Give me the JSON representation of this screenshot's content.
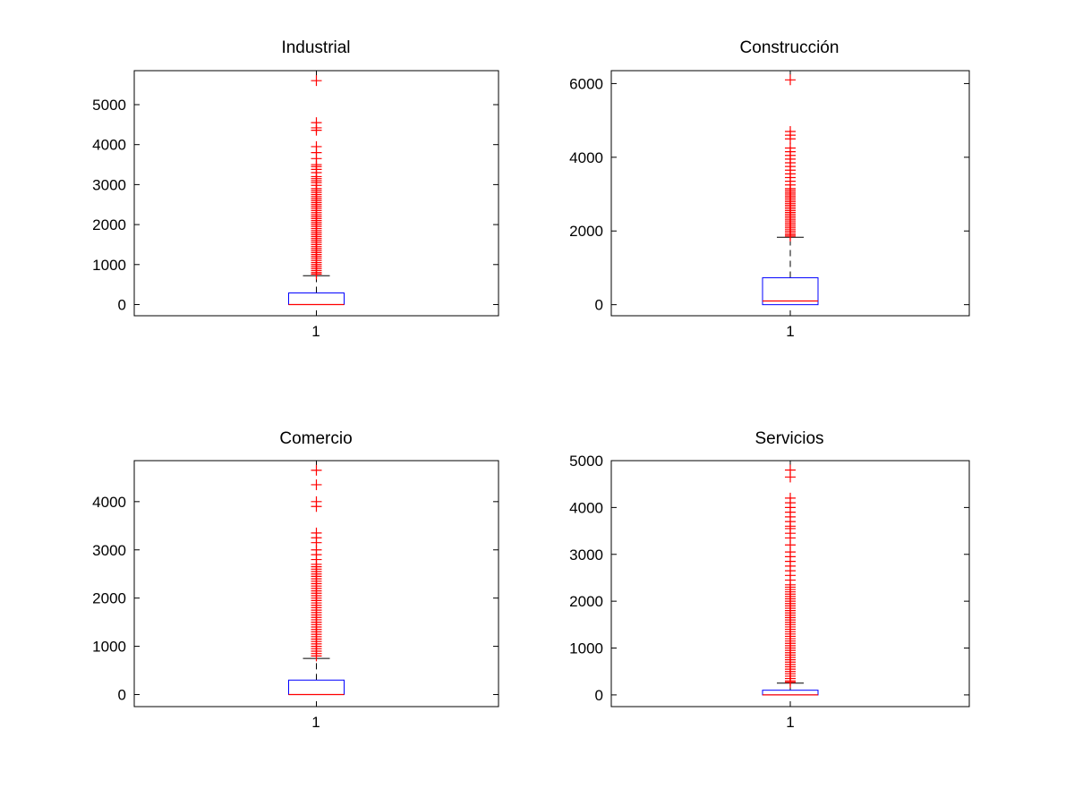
{
  "chart_data": [
    {
      "type": "box",
      "title": "Industrial",
      "categories": [
        "1"
      ],
      "ylim": [
        -280,
        5850
      ],
      "yticks": [
        0,
        1000,
        2000,
        3000,
        4000,
        5000
      ],
      "ytick_labels": [
        "0",
        "1000",
        "2000",
        "3000",
        "4000",
        "5000"
      ],
      "box": {
        "whisker_low": 0,
        "q1": 0,
        "median": 0,
        "q3": 290,
        "whisker_high": 720
      },
      "outliers": [
        5600,
        4550,
        4420,
        4360,
        3950,
        3800,
        3650,
        3500,
        3450,
        3380,
        3300,
        3200,
        3150,
        3100,
        3050,
        2980,
        2900,
        2850,
        2800,
        2750,
        2700,
        2650,
        2600,
        2550,
        2500,
        2450,
        2400,
        2350,
        2300,
        2250,
        2200,
        2150,
        2100,
        2050,
        2000,
        1950,
        1900,
        1850,
        1800,
        1750,
        1700,
        1650,
        1600,
        1550,
        1500,
        1450,
        1400,
        1350,
        1300,
        1250,
        1200,
        1150,
        1100,
        1050,
        1000,
        950,
        900,
        850,
        800,
        760
      ],
      "colors": {
        "box": "#0000ff",
        "median": "#ff0000",
        "whisker": "#000000",
        "outlier": "#ff0000"
      }
    },
    {
      "type": "box",
      "title": "Construcción",
      "categories": [
        "1"
      ],
      "ylim": [
        -300,
        6350
      ],
      "yticks": [
        0,
        2000,
        4000,
        6000
      ],
      "ytick_labels": [
        "0",
        "2000",
        "4000",
        "6000"
      ],
      "box": {
        "whisker_low": 0,
        "q1": 0,
        "median": 100,
        "q3": 730,
        "whisker_high": 1830
      },
      "outliers": [
        6100,
        4700,
        4600,
        4500,
        4250,
        4150,
        4050,
        3950,
        3850,
        3750,
        3650,
        3550,
        3450,
        3350,
        3250,
        3150,
        3100,
        3050,
        3000,
        2950,
        2900,
        2850,
        2800,
        2750,
        2700,
        2650,
        2600,
        2550,
        2500,
        2450,
        2400,
        2350,
        2300,
        2250,
        2200,
        2150,
        2100,
        2050,
        2000,
        1950,
        1900,
        1860
      ],
      "colors": {
        "box": "#0000ff",
        "median": "#ff0000",
        "whisker": "#000000",
        "outlier": "#ff0000"
      }
    },
    {
      "type": "box",
      "title": "Comercio",
      "categories": [
        "1"
      ],
      "ylim": [
        -250,
        4850
      ],
      "yticks": [
        0,
        1000,
        2000,
        3000,
        4000
      ],
      "ytick_labels": [
        "0",
        "1000",
        "2000",
        "3000",
        "4000"
      ],
      "box": {
        "whisker_low": 0,
        "q1": 0,
        "median": 0,
        "q3": 300,
        "whisker_high": 750
      },
      "outliers": [
        4650,
        4350,
        4000,
        3900,
        3350,
        3250,
        3150,
        3000,
        2900,
        2800,
        2700,
        2650,
        2600,
        2550,
        2500,
        2450,
        2400,
        2350,
        2300,
        2250,
        2200,
        2150,
        2100,
        2050,
        2000,
        1950,
        1900,
        1850,
        1800,
        1750,
        1700,
        1650,
        1600,
        1550,
        1500,
        1450,
        1400,
        1350,
        1300,
        1250,
        1200,
        1150,
        1100,
        1050,
        1000,
        950,
        900,
        850,
        800
      ],
      "colors": {
        "box": "#0000ff",
        "median": "#ff0000",
        "whisker": "#000000",
        "outlier": "#ff0000"
      }
    },
    {
      "type": "box",
      "title": "Servicios",
      "categories": [
        "1"
      ],
      "ylim": [
        -250,
        5000
      ],
      "yticks": [
        0,
        1000,
        2000,
        3000,
        4000,
        5000
      ],
      "ytick_labels": [
        "0",
        "1000",
        "2000",
        "3000",
        "4000",
        "5000"
      ],
      "box": {
        "whisker_low": 0,
        "q1": 0,
        "median": 0,
        "q3": 100,
        "whisker_high": 250
      },
      "outliers": [
        4800,
        4650,
        4200,
        4100,
        4000,
        3900,
        3800,
        3700,
        3600,
        3550,
        3450,
        3350,
        3200,
        3050,
        2950,
        2850,
        2750,
        2650,
        2550,
        2450,
        2350,
        2300,
        2250,
        2200,
        2150,
        2100,
        2050,
        2000,
        1950,
        1900,
        1850,
        1800,
        1750,
        1700,
        1650,
        1600,
        1550,
        1500,
        1450,
        1400,
        1350,
        1300,
        1250,
        1200,
        1150,
        1100,
        1050,
        1000,
        950,
        900,
        850,
        800,
        750,
        700,
        650,
        600,
        550,
        500,
        450,
        400,
        350,
        300,
        270
      ],
      "colors": {
        "box": "#0000ff",
        "median": "#ff0000",
        "whisker": "#000000",
        "outlier": "#ff0000"
      }
    }
  ]
}
